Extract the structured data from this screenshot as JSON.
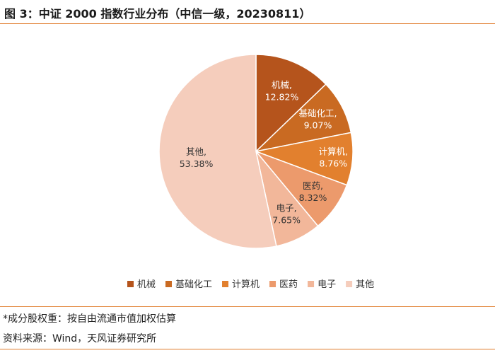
{
  "header": {
    "title": "图 3：中证 2000 指数行业分布（中信一级，20230811）"
  },
  "footer": {
    "note": "*成分股权重：按自由流通市值加权估算",
    "source": "资料来源：Wind，天风证券研究所"
  },
  "chart_data": {
    "type": "pie",
    "title": "",
    "legend_position": "bottom",
    "series": [
      {
        "name": "机械",
        "value": 12.82,
        "label_value": "12.82%",
        "color": "#b5541c"
      },
      {
        "name": "基础化工",
        "value": 9.07,
        "label_value": "9.07%",
        "color": "#c96a22"
      },
      {
        "name": "计算机",
        "value": 8.76,
        "label_value": "8.76%",
        "color": "#e2802e"
      },
      {
        "name": "医药",
        "value": 8.32,
        "label_value": "8.32%",
        "color": "#ec9a6c"
      },
      {
        "name": "电子",
        "value": 7.65,
        "label_value": "7.65%",
        "color": "#f2b79a"
      },
      {
        "name": "其他",
        "value": 53.38,
        "label_value": "53.38%",
        "color": "#f5cdbc"
      }
    ]
  }
}
